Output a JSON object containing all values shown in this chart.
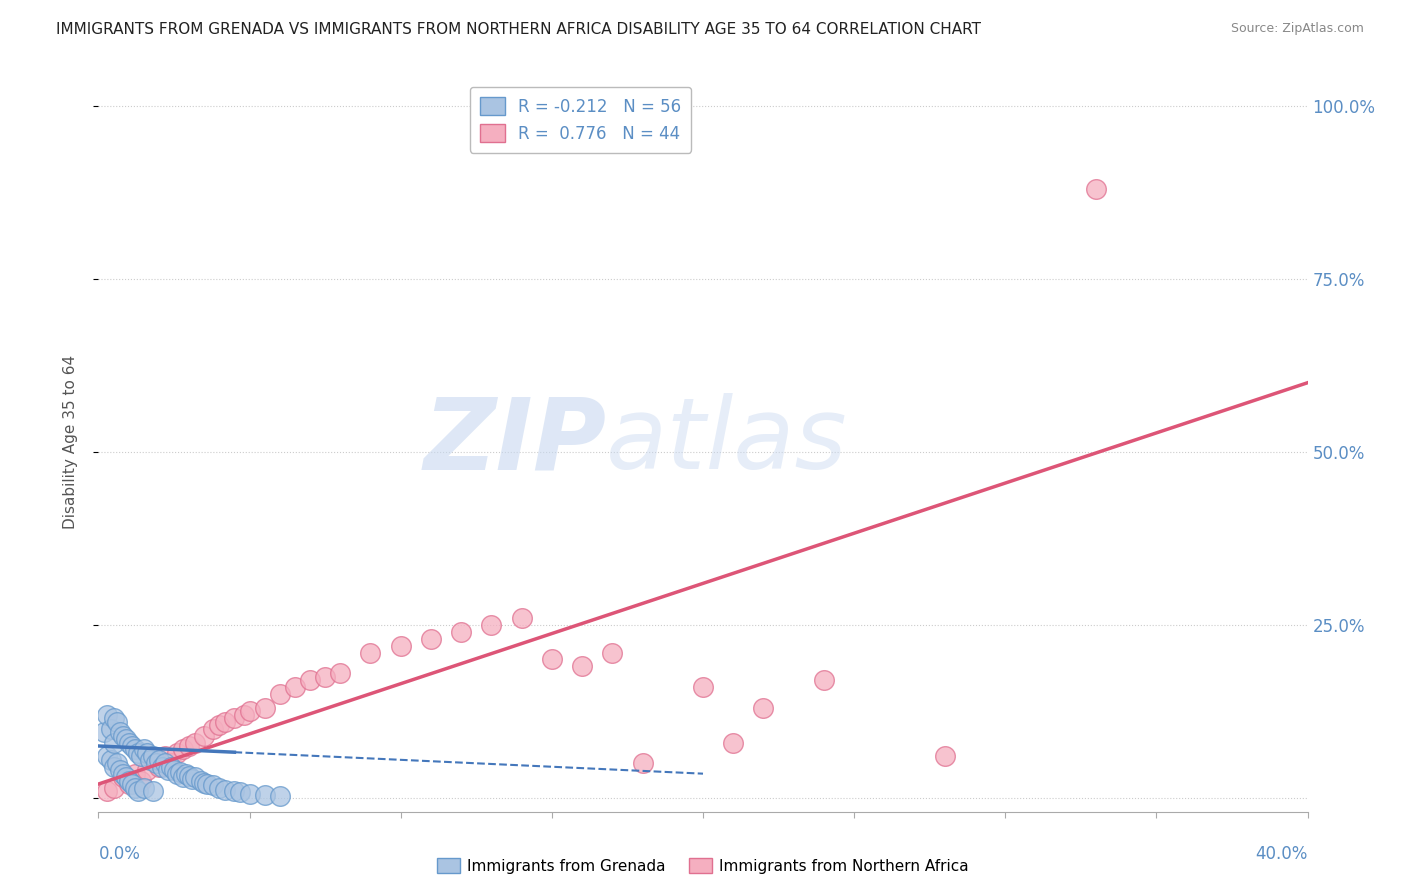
{
  "title": "IMMIGRANTS FROM GRENADA VS IMMIGRANTS FROM NORTHERN AFRICA DISABILITY AGE 35 TO 64 CORRELATION CHART",
  "source": "Source: ZipAtlas.com",
  "ylabel": "Disability Age 35 to 64",
  "xlim": [
    0.0,
    0.4
  ],
  "ylim": [
    -0.02,
    1.05
  ],
  "grenada_R": -0.212,
  "grenada_N": 56,
  "northern_africa_R": 0.776,
  "northern_africa_N": 44,
  "grenada_color": "#aac4e2",
  "northern_africa_color": "#f5afc0",
  "grenada_edge_color": "#6699cc",
  "northern_africa_edge_color": "#e07090",
  "grenada_line_color": "#4477bb",
  "northern_africa_line_color": "#dd5577",
  "watermark_zip_color": "#c8d8f0",
  "watermark_atlas_color": "#c8d8f0",
  "legend_label_1": "Immigrants from Grenada",
  "legend_label_2": "Immigrants from Northern Africa",
  "background_color": "#ffffff",
  "title_fontsize": 11,
  "axis_label_color": "#5b8ec4",
  "grid_color": "#cccccc",
  "yaxis_tick_vals": [
    0.0,
    0.25,
    0.5,
    0.75,
    1.0
  ],
  "yaxis_tick_labels": [
    "",
    "25.0%",
    "50.0%",
    "75.0%",
    "100.0%"
  ],
  "grenada_points_x": [
    0.002,
    0.003,
    0.003,
    0.004,
    0.004,
    0.005,
    0.005,
    0.005,
    0.006,
    0.006,
    0.007,
    0.007,
    0.008,
    0.008,
    0.009,
    0.009,
    0.01,
    0.01,
    0.011,
    0.011,
    0.012,
    0.012,
    0.013,
    0.013,
    0.014,
    0.015,
    0.015,
    0.016,
    0.017,
    0.018,
    0.018,
    0.019,
    0.02,
    0.021,
    0.022,
    0.023,
    0.024,
    0.025,
    0.026,
    0.027,
    0.028,
    0.029,
    0.03,
    0.031,
    0.032,
    0.034,
    0.035,
    0.036,
    0.038,
    0.04,
    0.042,
    0.045,
    0.047,
    0.05,
    0.055,
    0.06
  ],
  "grenada_points_y": [
    0.095,
    0.12,
    0.06,
    0.1,
    0.055,
    0.115,
    0.08,
    0.045,
    0.11,
    0.05,
    0.095,
    0.04,
    0.09,
    0.035,
    0.085,
    0.03,
    0.08,
    0.025,
    0.075,
    0.02,
    0.07,
    0.015,
    0.065,
    0.01,
    0.06,
    0.07,
    0.015,
    0.065,
    0.055,
    0.06,
    0.01,
    0.05,
    0.055,
    0.045,
    0.05,
    0.04,
    0.045,
    0.04,
    0.035,
    0.038,
    0.03,
    0.035,
    0.032,
    0.028,
    0.03,
    0.025,
    0.022,
    0.02,
    0.018,
    0.015,
    0.012,
    0.01,
    0.008,
    0.006,
    0.004,
    0.002
  ],
  "northern_africa_points_x": [
    0.003,
    0.005,
    0.008,
    0.01,
    0.012,
    0.014,
    0.016,
    0.018,
    0.02,
    0.022,
    0.024,
    0.026,
    0.028,
    0.03,
    0.032,
    0.035,
    0.038,
    0.04,
    0.042,
    0.045,
    0.048,
    0.05,
    0.055,
    0.06,
    0.065,
    0.07,
    0.075,
    0.08,
    0.09,
    0.1,
    0.11,
    0.12,
    0.13,
    0.14,
    0.15,
    0.16,
    0.17,
    0.18,
    0.2,
    0.21,
    0.22,
    0.24,
    0.28,
    0.33
  ],
  "northern_africa_points_y": [
    0.01,
    0.015,
    0.03,
    0.02,
    0.035,
    0.025,
    0.04,
    0.055,
    0.045,
    0.06,
    0.05,
    0.065,
    0.07,
    0.075,
    0.08,
    0.09,
    0.1,
    0.105,
    0.11,
    0.115,
    0.12,
    0.125,
    0.13,
    0.15,
    0.16,
    0.17,
    0.175,
    0.18,
    0.21,
    0.22,
    0.23,
    0.24,
    0.25,
    0.26,
    0.2,
    0.19,
    0.21,
    0.05,
    0.16,
    0.08,
    0.13,
    0.17,
    0.06,
    0.88
  ],
  "na_line_x0": 0.0,
  "na_line_y0": 0.02,
  "na_line_x1": 0.4,
  "na_line_y1": 0.6,
  "gr_line_x0": 0.0,
  "gr_line_y0": 0.075,
  "gr_line_x1": 0.2,
  "gr_line_y1": 0.035,
  "gr_line_solid_end": 0.045
}
